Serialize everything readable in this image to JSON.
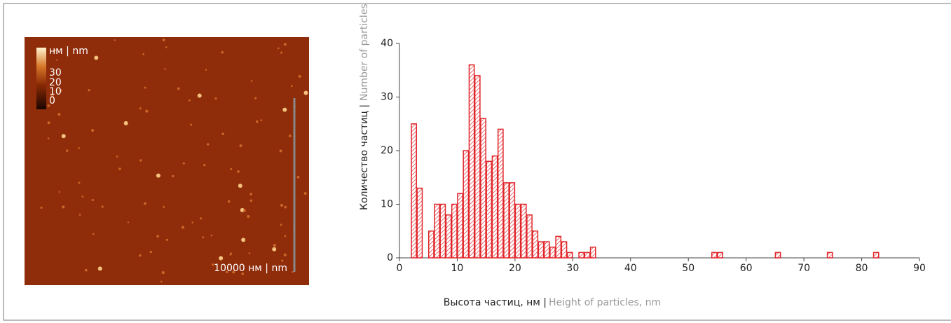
{
  "image": {
    "legend_unit": "нм | nm",
    "legend_ticks": [
      "30",
      "20",
      "10",
      "0"
    ],
    "scale_bar": "10000 нм | nm"
  },
  "chart_data": {
    "type": "histogram",
    "x_label": "Высота частиц, нм |",
    "x_label_en": "Height of particles, nm",
    "y_label": "Количество частиц |",
    "y_label_en": "Number of particles",
    "color": "#e0262b",
    "bins": [
      2,
      3,
      4,
      5,
      6,
      7,
      8,
      9,
      10,
      11,
      12,
      13,
      14,
      15,
      16,
      17,
      18,
      19,
      20,
      21,
      22,
      23,
      24,
      25,
      26,
      27,
      28,
      29,
      30,
      31,
      32,
      33,
      34,
      35,
      36,
      37,
      38,
      39,
      40,
      41,
      42,
      43,
      44,
      45,
      46,
      47,
      48,
      49,
      50,
      51,
      52,
      53,
      54,
      55,
      56,
      57,
      58,
      59,
      60,
      61,
      62,
      63,
      64,
      65,
      66,
      67,
      68,
      69,
      70,
      71,
      72,
      73,
      74,
      75,
      76,
      77,
      78,
      79,
      80,
      81,
      82,
      83,
      84
    ],
    "counts": [
      25,
      13,
      0,
      5,
      10,
      10,
      8,
      10,
      12,
      20,
      36,
      34,
      26,
      18,
      19,
      24,
      14,
      14,
      10,
      10,
      8,
      5,
      3,
      3,
      2,
      4,
      3,
      1,
      0,
      1,
      1,
      2,
      0,
      0,
      0,
      0,
      0,
      0,
      0,
      0,
      0,
      0,
      0,
      0,
      0,
      0,
      0,
      0,
      0,
      0,
      0,
      0,
      1,
      1,
      0,
      0,
      0,
      0,
      0,
      0,
      0,
      0,
      0,
      1,
      0,
      0,
      0,
      0,
      0,
      0,
      0,
      0,
      1,
      0,
      0,
      0,
      0,
      0,
      0,
      0,
      1,
      0
    ],
    "xlim": [
      0,
      90
    ],
    "xticks": [
      0,
      10,
      20,
      30,
      40,
      50,
      60,
      70,
      80,
      90
    ],
    "ylim": [
      0,
      40
    ],
    "yticks": [
      0,
      10,
      20,
      30,
      40
    ],
    "grid": false
  }
}
